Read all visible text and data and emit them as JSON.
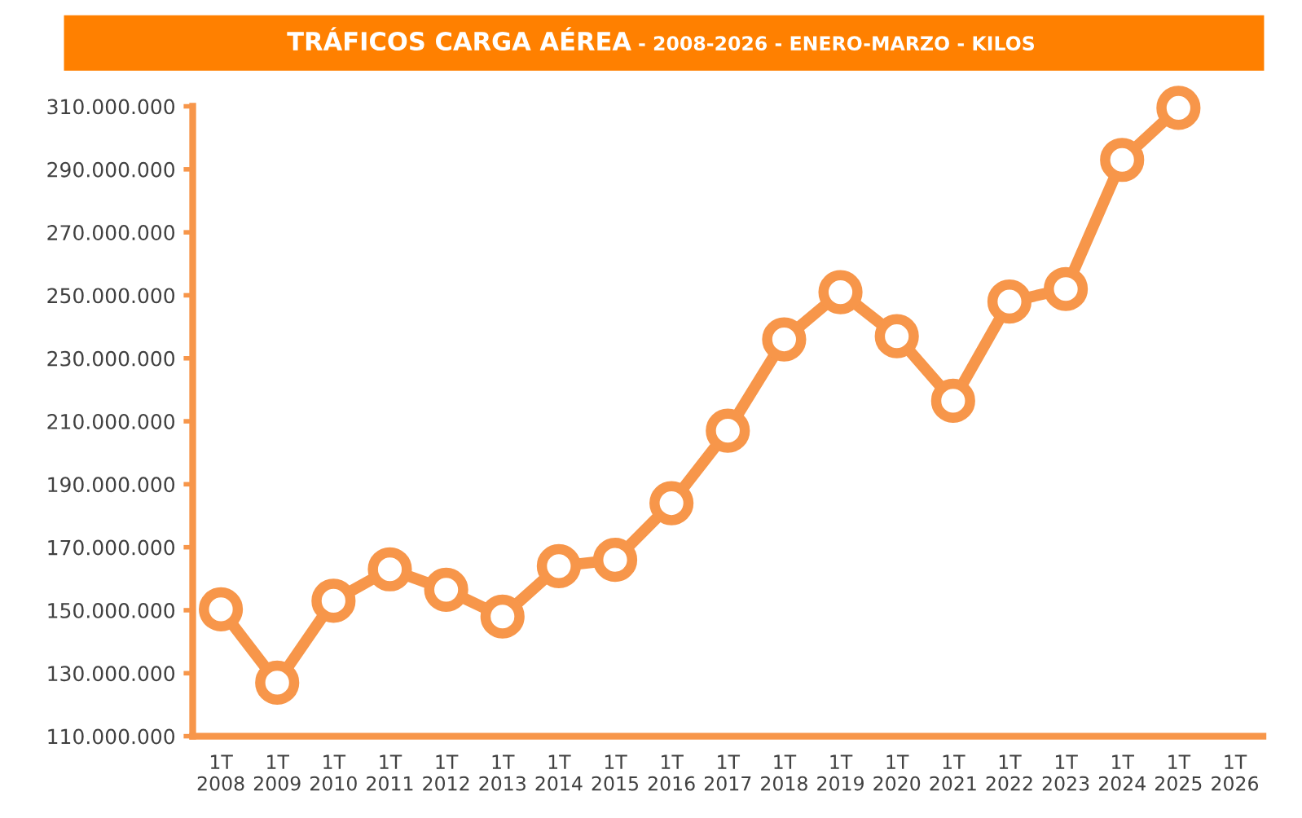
{
  "chart_data": {
    "type": "line",
    "title": "TRÁFICOS CARGA AÉREA",
    "subtitle": "- 2008-2026 - ENERO-MARZO - KILOS",
    "categories": [
      "1T\n2008",
      "1T\n2009",
      "1T\n2010",
      "1T\n2011",
      "1T\n2012",
      "1T\n2013",
      "1T\n2014",
      "1T\n2015",
      "1T\n2016",
      "1T\n2017",
      "1T\n2018",
      "1T\n2019",
      "1T\n2020",
      "1T\n2021",
      "1T\n2022",
      "1T\n2023",
      "1T\n2024",
      "1T\n2025",
      "1T\n2026"
    ],
    "series": [
      {
        "color": "#f7964a",
        "values": [
          150300000,
          127000000,
          153000000,
          163000000,
          156500000,
          148000000,
          164000000,
          166000000,
          184000000,
          207000000,
          236000000,
          251000000,
          237000000,
          216500000,
          248000000,
          252000000,
          293000000,
          309500000,
          null
        ]
      }
    ],
    "ylim": [
      110000000,
      310000000
    ],
    "yticks": [
      {
        "value": 110000000,
        "label": "110.000.000"
      },
      {
        "value": 130000000,
        "label": "130.000.000"
      },
      {
        "value": 150000000,
        "label": "150.000.000"
      },
      {
        "value": 170000000,
        "label": "170.000.000"
      },
      {
        "value": 190000000,
        "label": "190.000.000"
      },
      {
        "value": 210000000,
        "label": "210.000.000"
      },
      {
        "value": 230000000,
        "label": "230.000.000"
      },
      {
        "value": 250000000,
        "label": "250.000.000"
      },
      {
        "value": 270000000,
        "label": "270.000.000"
      },
      {
        "value": 290000000,
        "label": "290.000.000"
      },
      {
        "value": 310000000,
        "label": "310.000.000"
      }
    ],
    "grid": false,
    "legend": false,
    "marker": "circle",
    "line_style": "solid"
  }
}
